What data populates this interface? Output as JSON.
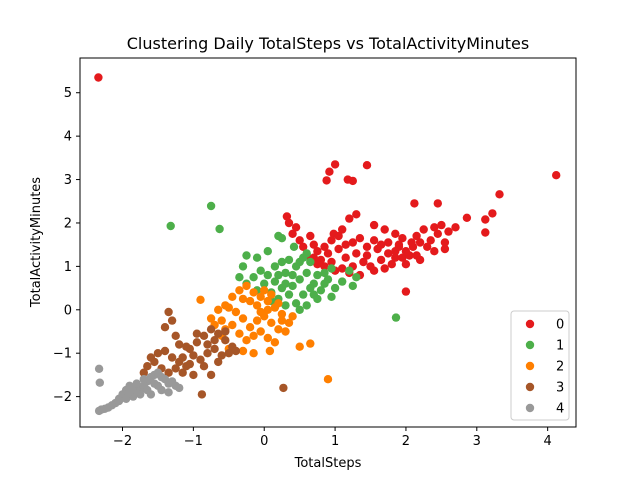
{
  "chart_data": {
    "type": "scatter",
    "title": "Clustering Daily TotalSteps vs TotalActivityMinutes",
    "xlabel": "TotalSteps",
    "ylabel": "TotalActivityMinutes",
    "xlim": [
      -2.6,
      4.4
    ],
    "ylim": [
      -2.7,
      5.8
    ],
    "xticks": [
      -2,
      -1,
      0,
      1,
      2,
      3,
      4
    ],
    "yticks": [
      -2,
      -1,
      0,
      1,
      2,
      3,
      4,
      5
    ],
    "xtick_labels": [
      "−2",
      "−1",
      "0",
      "1",
      "2",
      "3",
      "4"
    ],
    "ytick_labels": [
      "−2",
      "−1",
      "0",
      "1",
      "2",
      "3",
      "4",
      "5"
    ],
    "grid": false,
    "legend_position": "lower-right",
    "series": [
      {
        "name": "0",
        "color": "#e41a1c",
        "points": [
          [
            -2.34,
            5.35
          ],
          [
            4.12,
            3.1
          ],
          [
            3.32,
            2.66
          ],
          [
            3.22,
            2.22
          ],
          [
            3.12,
            2.08
          ],
          [
            3.12,
            1.78
          ],
          [
            2.86,
            2.12
          ],
          [
            2.6,
            1.8
          ],
          [
            2.55,
            1.4
          ],
          [
            2.5,
            1.95
          ],
          [
            2.45,
            1.75
          ],
          [
            2.4,
            1.9
          ],
          [
            2.35,
            1.6
          ],
          [
            2.3,
            1.45
          ],
          [
            2.25,
            1.85
          ],
          [
            2.2,
            1.55
          ],
          [
            2.15,
            1.7
          ],
          [
            2.1,
            1.45
          ],
          [
            2.08,
            1.55
          ],
          [
            2.05,
            1.25
          ],
          [
            2.0,
            1.35
          ],
          [
            1.95,
            1.65
          ],
          [
            1.9,
            1.5
          ],
          [
            1.85,
            1.2
          ],
          [
            1.8,
            1.05
          ],
          [
            1.75,
            1.3
          ],
          [
            1.7,
            0.95
          ],
          [
            1.65,
            1.15
          ],
          [
            1.6,
            1.4
          ],
          [
            1.55,
            0.9
          ],
          [
            1.5,
            1.0
          ],
          [
            1.45,
            1.25
          ],
          [
            1.4,
            1.1
          ],
          [
            1.35,
            0.8
          ],
          [
            1.3,
            1.3
          ],
          [
            1.25,
            1.0
          ],
          [
            1.2,
            0.85
          ],
          [
            1.15,
            1.2
          ],
          [
            1.1,
            0.95
          ],
          [
            1.05,
            1.4
          ],
          [
            1.0,
            0.9
          ],
          [
            0.95,
            1.1
          ],
          [
            0.9,
            1.3
          ],
          [
            0.85,
            1.0
          ],
          [
            0.8,
            1.15
          ],
          [
            0.75,
            1.35
          ],
          [
            0.7,
            1.5
          ],
          [
            0.65,
            1.7
          ],
          [
            0.6,
            1.25
          ],
          [
            0.55,
            1.45
          ],
          [
            0.5,
            1.6
          ],
          [
            0.45,
            1.9
          ],
          [
            0.4,
            1.75
          ],
          [
            0.35,
            2.0
          ],
          [
            0.32,
            2.15
          ],
          [
            1.0,
            3.35
          ],
          [
            1.18,
            3.0
          ],
          [
            1.25,
            2.97
          ],
          [
            1.45,
            3.33
          ],
          [
            0.92,
            3.18
          ],
          [
            0.88,
            2.98
          ],
          [
            2.12,
            2.45
          ],
          [
            2.45,
            2.45
          ],
          [
            2.0,
            0.42
          ],
          [
            0.98,
            1.75
          ],
          [
            1.1,
            1.85
          ],
          [
            1.2,
            2.1
          ],
          [
            1.3,
            2.2
          ],
          [
            1.55,
            1.95
          ],
          [
            1.7,
            1.85
          ],
          [
            1.85,
            1.75
          ],
          [
            1.9,
            1.45
          ],
          [
            1.95,
            1.2
          ],
          [
            2.0,
            1.05
          ],
          [
            2.15,
            1.25
          ],
          [
            2.4,
            1.35
          ],
          [
            2.55,
            1.55
          ],
          [
            2.7,
            1.9
          ],
          [
            0.7,
            1.2
          ],
          [
            0.75,
            1.05
          ],
          [
            0.85,
            1.45
          ],
          [
            0.95,
            1.6
          ],
          [
            1.05,
            1.7
          ],
          [
            1.15,
            1.5
          ],
          [
            1.25,
            1.55
          ],
          [
            1.35,
            1.65
          ],
          [
            1.45,
            1.45
          ],
          [
            1.55,
            1.6
          ],
          [
            1.65,
            1.5
          ],
          [
            1.75,
            1.55
          ],
          [
            1.85,
            1.35
          ],
          [
            2.2,
            1.15
          ]
        ]
      },
      {
        "name": "1",
        "color": "#4daf4a",
        "points": [
          [
            -0.75,
            2.39
          ],
          [
            -1.32,
            1.93
          ],
          [
            -0.63,
            1.86
          ],
          [
            1.86,
            -0.18
          ],
          [
            -0.25,
            1.25
          ],
          [
            -0.1,
            1.2
          ],
          [
            0.05,
            1.35
          ],
          [
            0.2,
            1.7
          ],
          [
            0.25,
            1.65
          ],
          [
            0.42,
            1.45
          ],
          [
            0.55,
            1.2
          ],
          [
            0.65,
            1.1
          ],
          [
            0.85,
            0.85
          ],
          [
            1.0,
            0.5
          ],
          [
            0.95,
            0.3
          ],
          [
            0.75,
            0.25
          ],
          [
            0.6,
            0.1
          ],
          [
            0.5,
            0.0
          ],
          [
            0.45,
            0.15
          ],
          [
            0.35,
            0.35
          ],
          [
            0.25,
            0.5
          ],
          [
            0.15,
            0.65
          ],
          [
            0.05,
            0.8
          ],
          [
            -0.05,
            0.9
          ],
          [
            -0.15,
            0.75
          ],
          [
            -0.25,
            0.6
          ],
          [
            -0.35,
            0.75
          ],
          [
            -0.3,
            1.0
          ],
          [
            0.1,
            0.4
          ],
          [
            0.2,
            0.25
          ],
          [
            0.3,
            0.1
          ],
          [
            0.4,
            0.55
          ],
          [
            0.5,
            0.7
          ],
          [
            0.6,
            0.85
          ],
          [
            0.7,
            0.6
          ],
          [
            0.8,
            0.45
          ],
          [
            0.9,
            0.7
          ],
          [
            1.1,
            0.65
          ],
          [
            1.2,
            0.9
          ],
          [
            1.3,
            0.75
          ],
          [
            0.45,
            1.0
          ],
          [
            0.3,
            0.85
          ],
          [
            0.35,
            1.15
          ],
          [
            0.0,
            0.6
          ],
          [
            -0.1,
            0.45
          ],
          [
            0.55,
            0.35
          ],
          [
            0.65,
            0.5
          ],
          [
            0.75,
            0.8
          ],
          [
            0.85,
            0.6
          ],
          [
            0.95,
            0.95
          ],
          [
            0.15,
            1.0
          ],
          [
            0.25,
            1.1
          ],
          [
            0.6,
            1.3
          ],
          [
            0.5,
            1.1
          ],
          [
            0.4,
            0.8
          ],
          [
            0.3,
            0.6
          ],
          [
            0.2,
            0.8
          ],
          [
            0.1,
            0.2
          ],
          [
            0.7,
            0.35
          ],
          [
            1.25,
            0.55
          ]
        ]
      },
      {
        "name": "2",
        "color": "#ff7f00",
        "points": [
          [
            -0.9,
            0.23
          ],
          [
            0.9,
            -1.6
          ],
          [
            0.65,
            -0.78
          ],
          [
            0.5,
            -0.85
          ],
          [
            0.08,
            -0.95
          ],
          [
            -0.15,
            -1.0
          ],
          [
            -0.3,
            -0.95
          ],
          [
            -0.5,
            -0.9
          ],
          [
            -0.6,
            -0.6
          ],
          [
            -0.7,
            -0.35
          ],
          [
            -0.75,
            -0.2
          ],
          [
            -0.65,
            0.0
          ],
          [
            -0.55,
            0.1
          ],
          [
            -0.45,
            0.3
          ],
          [
            -0.35,
            0.45
          ],
          [
            -0.25,
            0.55
          ],
          [
            -0.15,
            0.4
          ],
          [
            -0.05,
            0.3
          ],
          [
            0.05,
            0.2
          ],
          [
            0.15,
            0.05
          ],
          [
            0.25,
            -0.1
          ],
          [
            0.35,
            -0.3
          ],
          [
            0.3,
            -0.5
          ],
          [
            0.2,
            -0.45
          ],
          [
            0.1,
            -0.3
          ],
          [
            0.0,
            -0.15
          ],
          [
            -0.1,
            -0.25
          ],
          [
            -0.2,
            -0.4
          ],
          [
            -0.3,
            -0.2
          ],
          [
            -0.4,
            -0.05
          ],
          [
            -0.5,
            0.05
          ],
          [
            -0.45,
            -0.35
          ],
          [
            -0.35,
            -0.55
          ],
          [
            -0.25,
            -0.7
          ],
          [
            -0.15,
            -0.6
          ],
          [
            -0.05,
            -0.5
          ],
          [
            0.05,
            -0.65
          ],
          [
            0.15,
            -0.75
          ],
          [
            -0.6,
            -0.25
          ],
          [
            -0.55,
            -0.45
          ],
          [
            0.0,
            0.45
          ],
          [
            0.1,
            0.35
          ],
          [
            0.2,
            0.15
          ],
          [
            -0.1,
            0.1
          ],
          [
            -0.2,
            0.2
          ],
          [
            -0.3,
            0.25
          ],
          [
            0.25,
            -0.25
          ],
          [
            0.4,
            -0.15
          ],
          [
            -0.05,
            -0.05
          ],
          [
            0.05,
            0.0
          ]
        ]
      },
      {
        "name": "3",
        "color": "#a65628",
        "points": [
          [
            -1.35,
            -0.05
          ],
          [
            -1.3,
            -0.25
          ],
          [
            -1.4,
            -0.4
          ],
          [
            0.27,
            -1.8
          ],
          [
            -0.88,
            -1.95
          ],
          [
            -1.0,
            -1.5
          ],
          [
            -1.1,
            -1.3
          ],
          [
            -1.2,
            -1.2
          ],
          [
            -1.3,
            -1.1
          ],
          [
            -1.4,
            -0.95
          ],
          [
            -1.5,
            -1.0
          ],
          [
            -1.55,
            -1.2
          ],
          [
            -1.45,
            -1.35
          ],
          [
            -1.35,
            -1.45
          ],
          [
            -1.25,
            -1.35
          ],
          [
            -1.15,
            -1.1
          ],
          [
            -1.05,
            -0.9
          ],
          [
            -0.95,
            -0.75
          ],
          [
            -0.85,
            -0.6
          ],
          [
            -0.75,
            -0.45
          ],
          [
            -0.65,
            -0.55
          ],
          [
            -0.55,
            -0.7
          ],
          [
            -0.45,
            -0.85
          ],
          [
            -0.4,
            -0.95
          ],
          [
            -0.6,
            -1.05
          ],
          [
            -0.7,
            -0.9
          ],
          [
            -0.8,
            -1.0
          ],
          [
            -0.9,
            -1.15
          ],
          [
            -1.0,
            -1.05
          ],
          [
            -1.1,
            -0.85
          ],
          [
            -1.2,
            -0.8
          ],
          [
            -0.85,
            -1.3
          ],
          [
            -0.75,
            -1.5
          ],
          [
            -0.65,
            -1.2
          ],
          [
            -0.95,
            -0.55
          ],
          [
            -1.25,
            -0.6
          ],
          [
            -1.65,
            -1.3
          ],
          [
            -1.7,
            -1.45
          ],
          [
            -1.6,
            -1.1
          ],
          [
            -0.5,
            -1.0
          ],
          [
            -0.55,
            -0.5
          ],
          [
            -0.8,
            -0.8
          ],
          [
            -1.05,
            -1.25
          ],
          [
            -1.15,
            -1.45
          ],
          [
            -0.7,
            -0.7
          ]
        ]
      },
      {
        "name": "4",
        "color": "#999999",
        "points": [
          [
            -2.33,
            -1.36
          ],
          [
            -2.32,
            -1.68
          ],
          [
            -2.33,
            -2.33
          ],
          [
            -2.3,
            -2.3
          ],
          [
            -2.25,
            -2.28
          ],
          [
            -2.2,
            -2.25
          ],
          [
            -2.15,
            -2.2
          ],
          [
            -2.1,
            -2.15
          ],
          [
            -2.05,
            -2.05
          ],
          [
            -2.0,
            -1.95
          ],
          [
            -1.95,
            -1.85
          ],
          [
            -1.9,
            -1.75
          ],
          [
            -1.85,
            -1.8
          ],
          [
            -1.8,
            -1.9
          ],
          [
            -1.75,
            -1.85
          ],
          [
            -1.7,
            -1.75
          ],
          [
            -1.65,
            -1.65
          ],
          [
            -1.6,
            -1.55
          ],
          [
            -1.55,
            -1.5
          ],
          [
            -1.5,
            -1.45
          ],
          [
            -1.45,
            -1.55
          ],
          [
            -1.4,
            -1.6
          ],
          [
            -1.35,
            -1.7
          ],
          [
            -1.3,
            -1.65
          ],
          [
            -1.25,
            -1.75
          ],
          [
            -1.2,
            -1.8
          ],
          [
            -1.55,
            -1.7
          ],
          [
            -1.65,
            -1.85
          ],
          [
            -1.75,
            -1.95
          ],
          [
            -1.85,
            -2.0
          ],
          [
            -1.95,
            -2.05
          ],
          [
            -2.05,
            -2.1
          ],
          [
            -1.6,
            -1.95
          ],
          [
            -1.45,
            -1.85
          ],
          [
            -1.35,
            -1.9
          ],
          [
            -1.5,
            -1.75
          ],
          [
            -1.7,
            -1.6
          ],
          [
            -1.8,
            -1.7
          ],
          [
            -1.9,
            -1.9
          ]
        ]
      }
    ]
  }
}
